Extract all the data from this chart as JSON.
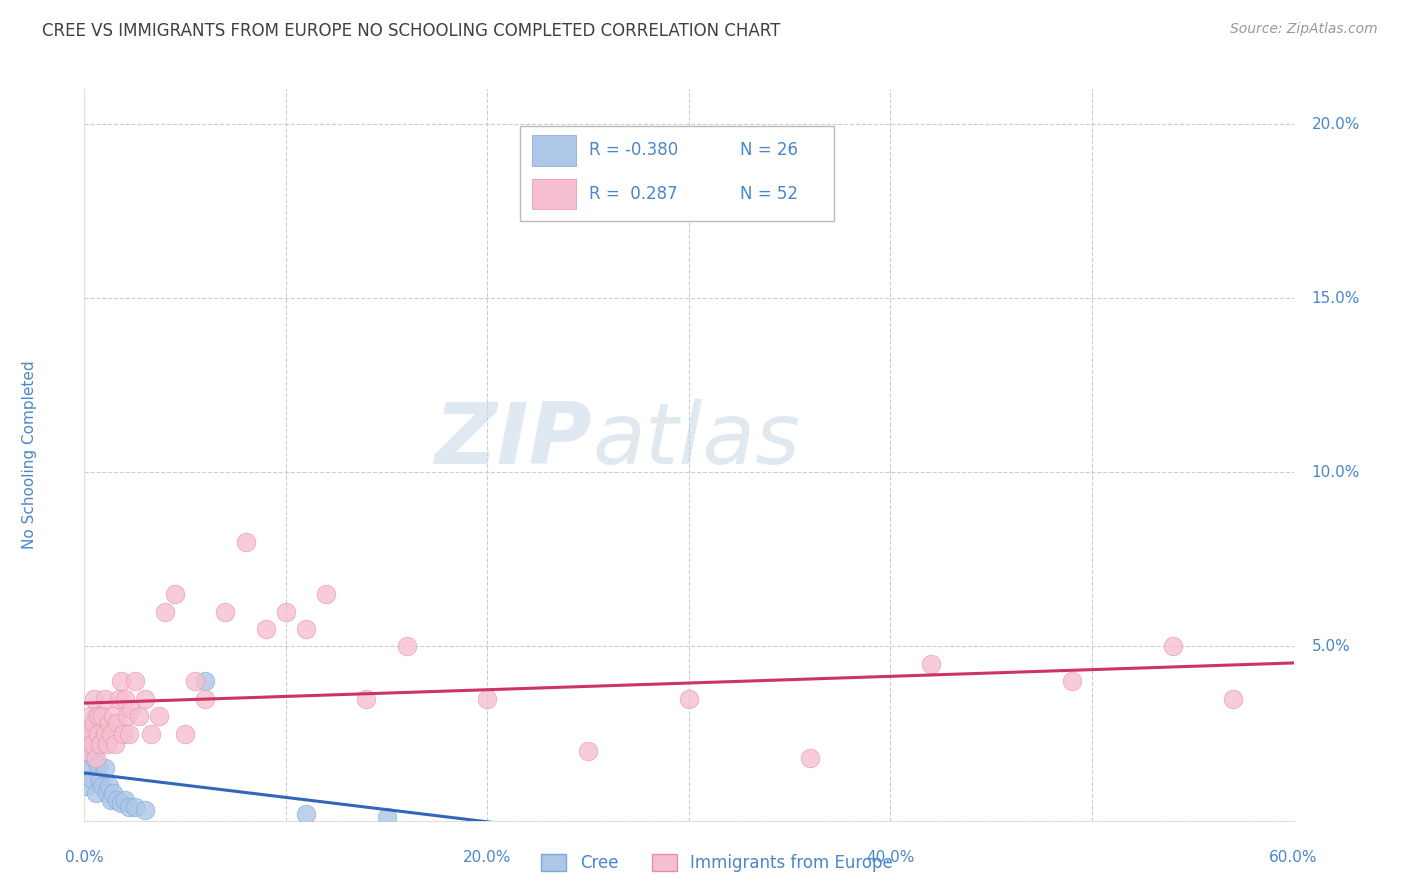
{
  "title": "CREE VS IMMIGRANTS FROM EUROPE NO SCHOOLING COMPLETED CORRELATION CHART",
  "source": "Source: ZipAtlas.com",
  "ylabel": "No Schooling Completed",
  "background_color": "#ffffff",
  "title_color": "#404040",
  "axis_color": "#4a86c8",
  "grid_color": "#c8c8c8",
  "watermark_zip": "ZIP",
  "watermark_atlas": "atlas",
  "cree_color": "#aec6e8",
  "cree_edge_color": "#7aaad0",
  "cree_line_color": "#3366bb",
  "immigrants_color": "#f5bfcf",
  "immigrants_edge_color": "#e890a8",
  "immigrants_line_color": "#cc3366",
  "xlim": [
    0.0,
    0.6
  ],
  "ylim": [
    0.0,
    0.21
  ],
  "xticks": [
    0.0,
    0.1,
    0.2,
    0.3,
    0.4,
    0.5,
    0.6
  ],
  "yticks_right": [
    0.0,
    0.05,
    0.1,
    0.15,
    0.2
  ],
  "xtick_labels": [
    "0.0%",
    "",
    "20.0%",
    "",
    "40.0%",
    "",
    "60.0%"
  ],
  "ytick_labels_right": [
    "",
    "5.0%",
    "10.0%",
    "15.0%",
    "20.0%"
  ],
  "cree_R": -0.38,
  "cree_N": 26,
  "immigrants_R": 0.287,
  "immigrants_N": 52,
  "cree_x": [
    0.001,
    0.002,
    0.003,
    0.003,
    0.004,
    0.004,
    0.005,
    0.006,
    0.006,
    0.007,
    0.008,
    0.009,
    0.01,
    0.011,
    0.012,
    0.013,
    0.014,
    0.016,
    0.018,
    0.02,
    0.022,
    0.025,
    0.03,
    0.06,
    0.11,
    0.15
  ],
  "cree_y": [
    0.01,
    0.02,
    0.015,
    0.025,
    0.012,
    0.022,
    0.018,
    0.03,
    0.008,
    0.016,
    0.012,
    0.01,
    0.015,
    0.008,
    0.01,
    0.006,
    0.008,
    0.006,
    0.005,
    0.006,
    0.004,
    0.004,
    0.003,
    0.04,
    0.002,
    0.001
  ],
  "immigrants_x": [
    0.001,
    0.002,
    0.003,
    0.004,
    0.005,
    0.005,
    0.006,
    0.007,
    0.007,
    0.008,
    0.009,
    0.01,
    0.01,
    0.011,
    0.012,
    0.013,
    0.014,
    0.015,
    0.016,
    0.017,
    0.018,
    0.019,
    0.02,
    0.021,
    0.022,
    0.023,
    0.025,
    0.027,
    0.03,
    0.033,
    0.037,
    0.04,
    0.045,
    0.05,
    0.055,
    0.06,
    0.07,
    0.08,
    0.09,
    0.1,
    0.11,
    0.12,
    0.14,
    0.16,
    0.2,
    0.25,
    0.3,
    0.36,
    0.42,
    0.49,
    0.54,
    0.57
  ],
  "immigrants_y": [
    0.02,
    0.025,
    0.03,
    0.022,
    0.028,
    0.035,
    0.018,
    0.025,
    0.03,
    0.022,
    0.03,
    0.025,
    0.035,
    0.022,
    0.028,
    0.025,
    0.03,
    0.022,
    0.028,
    0.035,
    0.04,
    0.025,
    0.035,
    0.03,
    0.025,
    0.032,
    0.04,
    0.03,
    0.035,
    0.025,
    0.03,
    0.06,
    0.065,
    0.025,
    0.04,
    0.035,
    0.06,
    0.08,
    0.055,
    0.06,
    0.055,
    0.065,
    0.035,
    0.05,
    0.035,
    0.02,
    0.035,
    0.018,
    0.045,
    0.04,
    0.05,
    0.035
  ],
  "cree_line_x": [
    0.0,
    0.22
  ],
  "immigrants_line_x": [
    0.0,
    0.6
  ],
  "legend_R1": "R = -0.380",
  "legend_N1": "N = 26",
  "legend_R2": "R =  0.287",
  "legend_N2": "N = 52"
}
